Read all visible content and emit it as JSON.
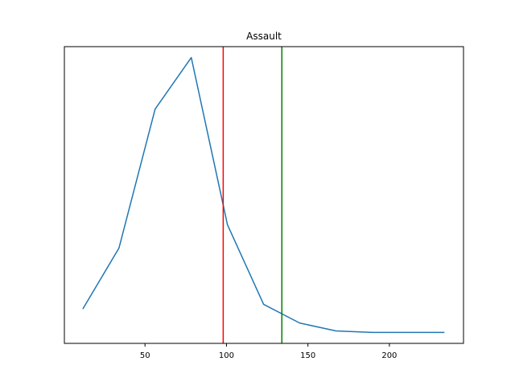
{
  "chart_data": {
    "type": "line",
    "title": "Assault",
    "xlabel": "",
    "ylabel": "",
    "xlim": [
      0.5,
      245.5
    ],
    "ylim": [
      -0.0005,
      0.0185
    ],
    "xticks": [
      50,
      100,
      150,
      200
    ],
    "xtick_labels": [
      "50",
      "100",
      "150",
      "200"
    ],
    "show_yticks": false,
    "grid": false,
    "series": [
      {
        "color": "#1f77b4",
        "x": [
          11.8,
          34.0,
          56.2,
          78.4,
          100.6,
          122.8,
          145.0,
          167.2,
          189.4,
          211.6,
          233.8
        ],
        "y": [
          0.0017,
          0.0056,
          0.0145,
          0.0178,
          0.0071,
          0.002,
          0.0008,
          0.0003,
          0.0002,
          0.0002,
          0.0002
        ]
      }
    ],
    "vlines": [
      {
        "x": 98.0,
        "color": "#ff0000"
      },
      {
        "x": 134.0,
        "color": "#008000"
      }
    ]
  }
}
